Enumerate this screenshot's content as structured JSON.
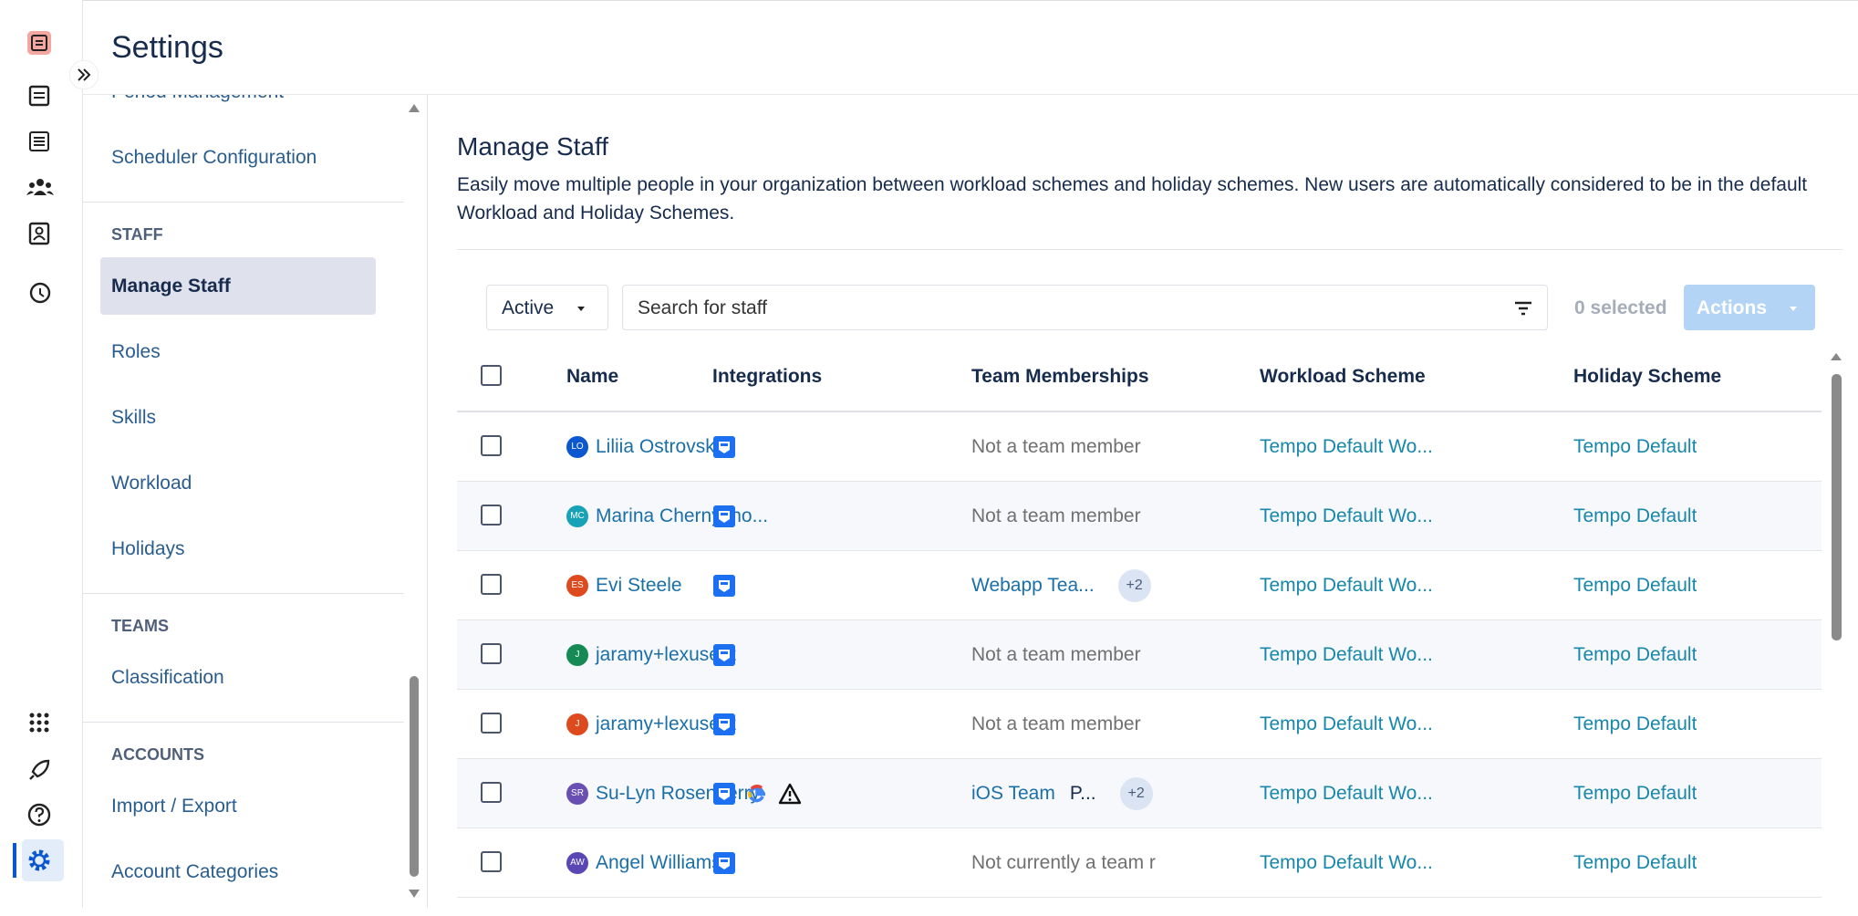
{
  "header": {
    "title": "Settings"
  },
  "sidebar": {
    "sections": [
      {
        "items": [
          "Period Management",
          "Scheduler Configuration"
        ]
      },
      {
        "heading": "STAFF",
        "items": [
          "Manage Staff",
          "Roles",
          "Skills",
          "Workload",
          "Holidays"
        ],
        "active": 0
      },
      {
        "heading": "TEAMS",
        "items": [
          "Classification"
        ]
      },
      {
        "heading": "ACCOUNTS",
        "items": [
          "Import / Export",
          "Account Categories"
        ]
      }
    ]
  },
  "main": {
    "title": "Manage Staff",
    "description": "Easily move multiple people in your organization between workload schemes and holiday schemes. New users are automatically considered to be in the default Workload and Holiday Schemes."
  },
  "toolbar": {
    "status_filter": "Active",
    "search_placeholder": "Search for staff",
    "selected": "0 selected",
    "actions": "Actions"
  },
  "table": {
    "columns": [
      "Name",
      "Integrations",
      "Team Memberships",
      "Workload Scheme",
      "Holiday Scheme"
    ],
    "rows": [
      {
        "initials": "LO",
        "avatar_color": "#0b57d0",
        "name": "Liliia Ostrovska",
        "integrations": [
          "tempo"
        ],
        "team_status": "Not a team member",
        "workload": "Tempo Default Wo...",
        "holiday": "Tempo Default"
      },
      {
        "initials": "MC",
        "avatar_color": "#17a2b8",
        "name": "Marina Chernysho...",
        "integrations": [
          "tempo"
        ],
        "team_status": "Not a team member",
        "workload": "Tempo Default Wo...",
        "holiday": "Tempo Default"
      },
      {
        "initials": "ES",
        "avatar_color": "#dc4a1e",
        "name": "Evi Steele",
        "integrations": [
          "tempo"
        ],
        "team_memberships": [
          "Webapp Tea..."
        ],
        "team_more": "+2",
        "workload": "Tempo Default Wo...",
        "holiday": "Tempo Default"
      },
      {
        "initials": "J",
        "avatar_color": "#168a55",
        "name": "jaramy+lexuser2",
        "integrations": [
          "tempo"
        ],
        "team_status": "Not a team member",
        "workload": "Tempo Default Wo...",
        "holiday": "Tempo Default"
      },
      {
        "initials": "J",
        "avatar_color": "#dc4a1e",
        "name": "jaramy+lexuser2",
        "integrations": [
          "tempo"
        ],
        "team_status": "Not a team member",
        "workload": "Tempo Default Wo...",
        "holiday": "Tempo Default"
      },
      {
        "initials": "SR",
        "avatar_color": "#6a4fb3",
        "name": "Su-Lyn Rosenberry",
        "integrations": [
          "tempo",
          "google",
          "warning"
        ],
        "team_memberships": [
          "iOS Team",
          "P..."
        ],
        "team_more": "+2",
        "workload": "Tempo Default Wo...",
        "holiday": "Tempo Default"
      },
      {
        "initials": "AW",
        "avatar_color": "#5a46b5",
        "name": "Angel Williams",
        "integrations": [
          "tempo"
        ],
        "team_status": "Not currently a team r",
        "workload": "Tempo Default Wo...",
        "holiday": "Tempo Default"
      }
    ]
  }
}
